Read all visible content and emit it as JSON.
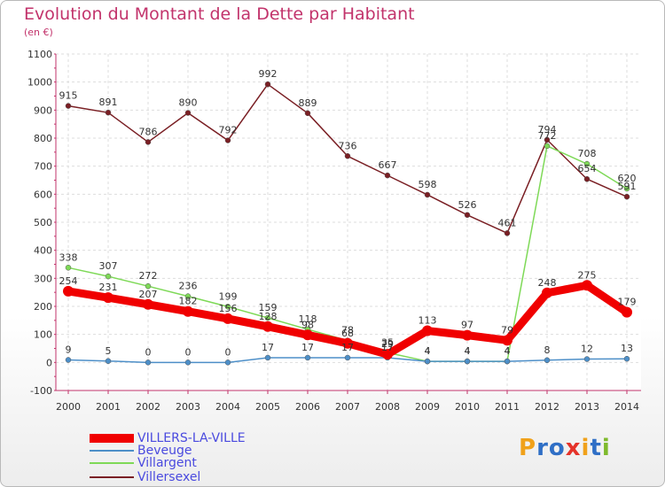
{
  "title": "Evolution du Montant de la Dette par Habitant",
  "unit": "(en €)",
  "logo": {
    "letters": [
      "P",
      "r",
      "o",
      "x",
      "i",
      "t",
      "i"
    ],
    "colors": [
      "#f0a11a",
      "#2f6fc6",
      "#2f6fc6",
      "#e5332a",
      "#f0a11a",
      "#2f6fc6",
      "#7fba2d"
    ]
  },
  "chart_data": {
    "type": "line",
    "title": "Evolution du Montant de la Dette par Habitant",
    "ylabel": "(en €)",
    "x": [
      "2000",
      "2001",
      "2002",
      "2003",
      "2004",
      "2005",
      "2006",
      "2007",
      "2008",
      "2009",
      "2010",
      "2011",
      "2012",
      "2013",
      "2014"
    ],
    "ylim": [
      -100,
      1100
    ],
    "yticks": [
      -100,
      0,
      100,
      200,
      300,
      400,
      500,
      600,
      700,
      800,
      900,
      1000,
      1100
    ],
    "grid": true,
    "legend_position": "bottom-left",
    "series": [
      {
        "name": "VILLERS-LA-VILLE",
        "color": "#f00000",
        "values": [
          254,
          231,
          207,
          182,
          156,
          128,
          98,
          68,
          29,
          113,
          97,
          79,
          248,
          275,
          179
        ]
      },
      {
        "name": "Beveuge",
        "color": "#4d8fc8",
        "values": [
          9,
          5,
          0,
          0,
          0,
          17,
          17,
          17,
          17,
          4,
          4,
          4,
          8,
          12,
          13
        ]
      },
      {
        "name": "Villargent",
        "color": "#7ed957",
        "values": [
          338,
          307,
          272,
          236,
          199,
          159,
          118,
          78,
          35,
          4,
          4,
          4,
          772,
          708,
          620
        ]
      },
      {
        "name": "Villersexel",
        "color": "#7a1f24",
        "values": [
          915,
          891,
          786,
          890,
          792,
          992,
          889,
          736,
          667,
          598,
          526,
          461,
          794,
          654,
          591
        ]
      }
    ]
  }
}
